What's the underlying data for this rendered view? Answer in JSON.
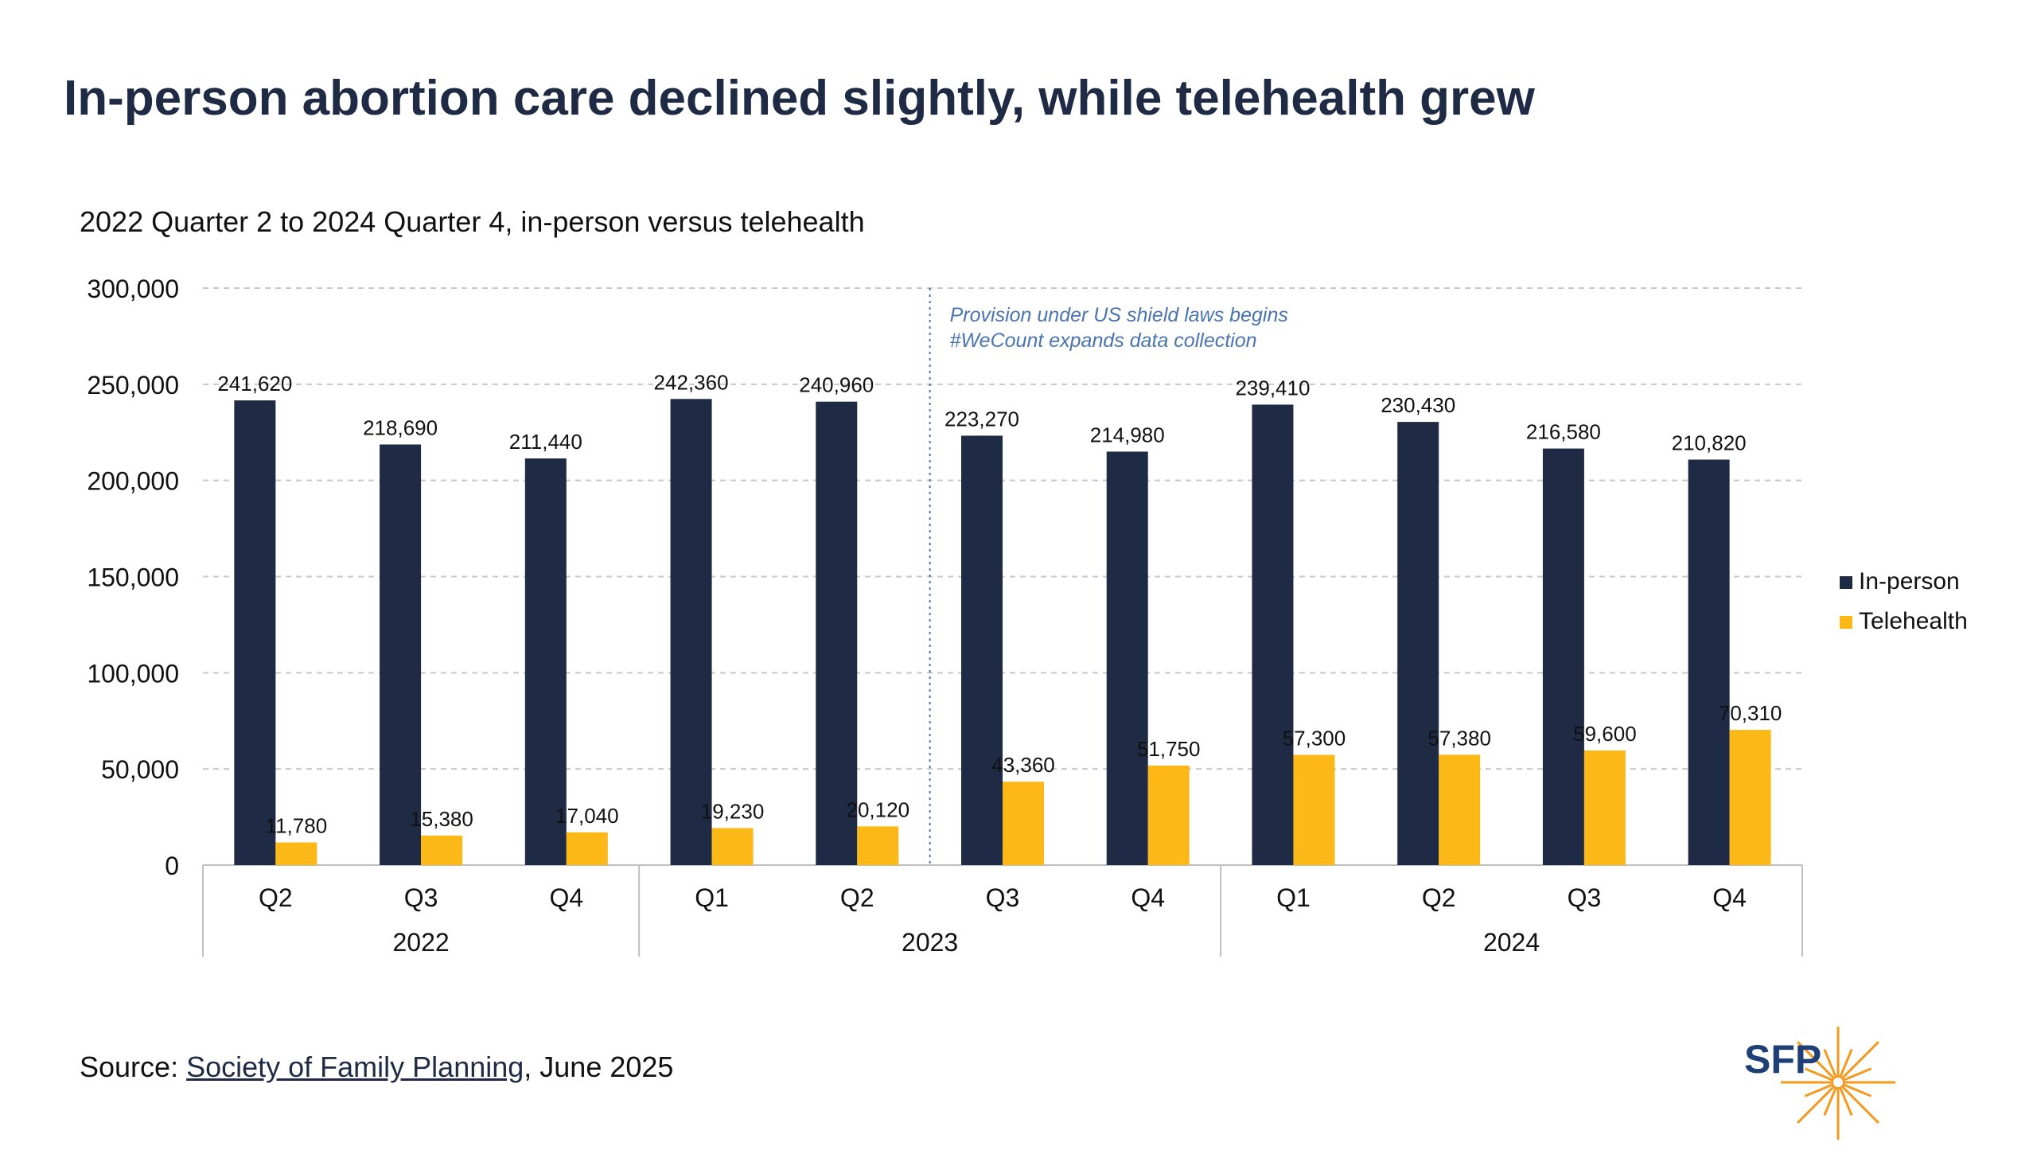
{
  "title": "In-person abortion care declined slightly, while telehealth grew",
  "subtitle": "2022 Quarter 2 to 2024 Quarter 4, in-person versus telehealth",
  "source": {
    "prefix": "Source: ",
    "link_text": "Society of Family Planning",
    "suffix": ", June 2025"
  },
  "logo": {
    "text": "SFP"
  },
  "colors": {
    "in_person": "#1f2a44",
    "telehealth": "#fbb817",
    "annotation": "#4a74b0",
    "grid": "#c8c8c8",
    "axis": "#bfbfbf",
    "logo_text": "#1f3f77",
    "logo_burst": "#f39a1e"
  },
  "chart_data": {
    "type": "bar",
    "categories": [
      "Q2",
      "Q3",
      "Q4",
      "Q1",
      "Q2",
      "Q3",
      "Q4",
      "Q1",
      "Q2",
      "Q3",
      "Q4"
    ],
    "year_groups": [
      {
        "label": "2022",
        "count": 3
      },
      {
        "label": "2023",
        "count": 4
      },
      {
        "label": "2024",
        "count": 4
      }
    ],
    "series": [
      {
        "name": "In-person",
        "values": [
          241620,
          218690,
          211440,
          242360,
          240960,
          223270,
          214980,
          239410,
          230430,
          216580,
          210820
        ]
      },
      {
        "name": "Telehealth",
        "values": [
          11780,
          15380,
          17040,
          19230,
          20120,
          43360,
          51750,
          57300,
          57380,
          59600,
          70310
        ]
      }
    ],
    "data_labels": {
      "In-person": [
        "241,620",
        "218,690",
        "211,440",
        "242,360",
        "240,960",
        "223,270",
        "214,980",
        "239,410",
        "230,430",
        "216,580",
        "210,820"
      ],
      "Telehealth": [
        "11,780",
        "15,380",
        "17,040",
        "19,230",
        "20,120",
        "43,360",
        "51,750",
        "57,300",
        "57,380",
        "59,600",
        "70,310"
      ]
    },
    "y_ticks": [
      "0",
      "50,000",
      "100,000",
      "150,000",
      "200,000",
      "250,000",
      "300,000"
    ],
    "ylim": [
      0,
      300000
    ],
    "grid": true,
    "legend_position": "right",
    "annotation": {
      "after_category_index": 4,
      "lines": [
        "Provision under US shield laws begins",
        "#WeCount expands data collection"
      ]
    }
  }
}
